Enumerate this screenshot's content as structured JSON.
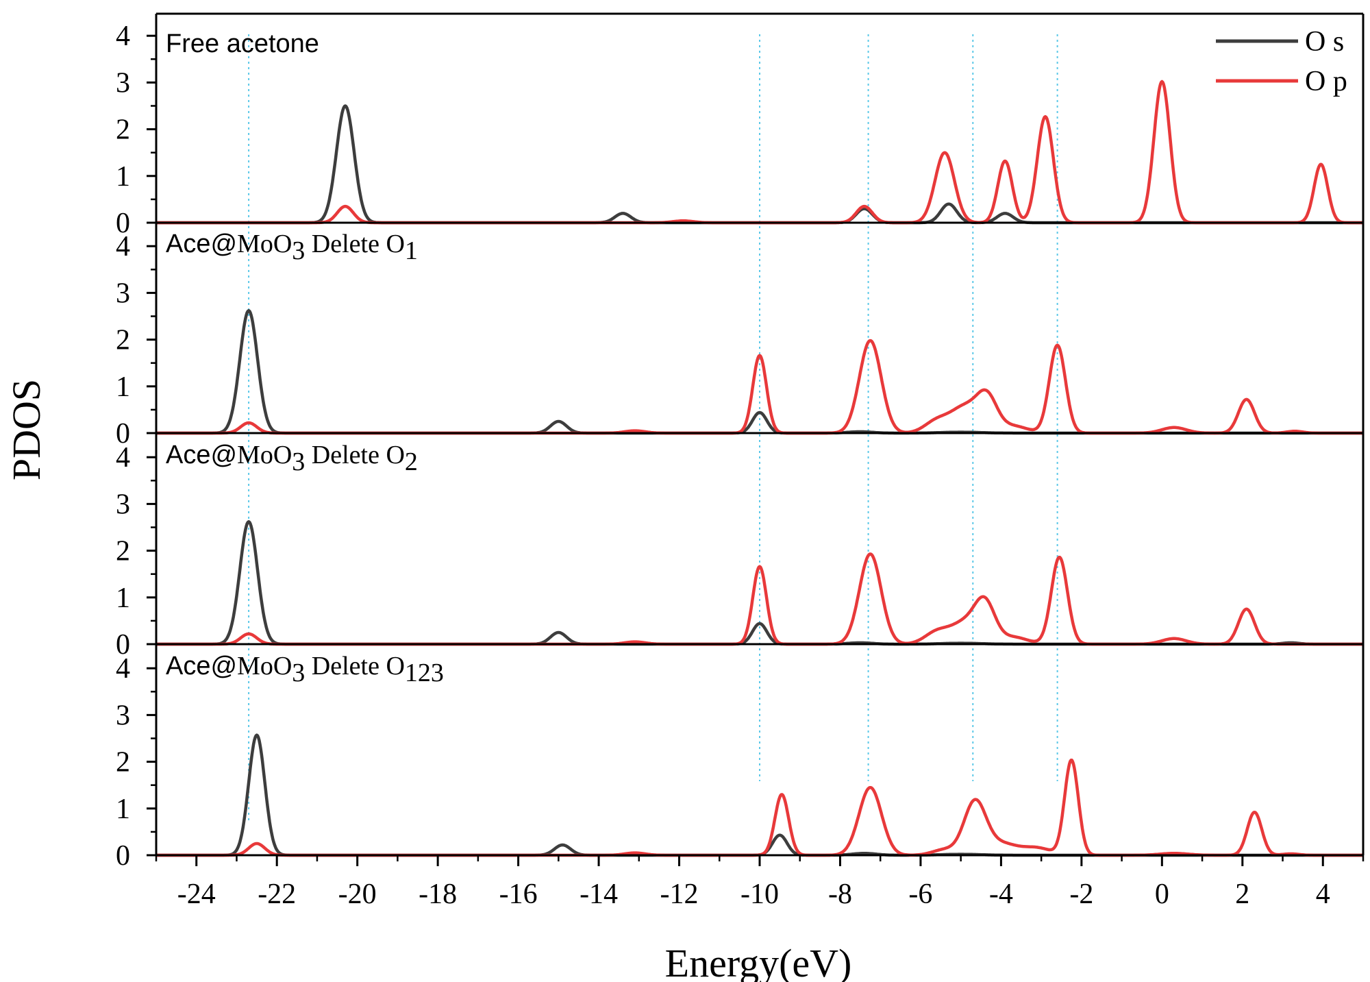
{
  "chart_data": {
    "type": "line",
    "xlabel": "Energy(eV)",
    "ylabel": "PDOS",
    "xlim": [
      -25,
      5
    ],
    "x_ticks": [
      "-24",
      "-22",
      "-20",
      "-18",
      "-16",
      "-14",
      "-12",
      "-10",
      "-8",
      "-6",
      "-4",
      "-2",
      "0",
      "2",
      "4"
    ],
    "y_ticks": [
      "0",
      "1",
      "2",
      "3",
      "4"
    ],
    "ylim": [
      0,
      4
    ],
    "reference_lines_x": [
      -22.7,
      -10.0,
      -7.3,
      -4.7,
      -2.6
    ],
    "colors": {
      "O s": "#3d3d3d",
      "O p": "#e8393a",
      "reference": "#5bc8e8"
    },
    "legend": {
      "entries": [
        {
          "label": "O s",
          "color": "#3d3d3d"
        },
        {
          "label": "O p",
          "color": "#e8393a"
        }
      ],
      "placement": "top-right"
    },
    "panels": [
      {
        "label_main": "Free acetone",
        "label_formula": "",
        "label_tail": "",
        "label_sub": "",
        "series": [
          {
            "name": "O s",
            "peaks": [
              [
                -20.3,
                2.5,
                0.22
              ],
              [
                -13.4,
                0.2,
                0.2
              ],
              [
                -7.4,
                0.3,
                0.2
              ],
              [
                -5.3,
                0.4,
                0.2
              ],
              [
                -3.9,
                0.2,
                0.2
              ]
            ]
          },
          {
            "name": "O p",
            "peaks": [
              [
                -20.3,
                0.35,
                0.2
              ],
              [
                -11.9,
                0.04,
                0.25
              ],
              [
                -7.4,
                0.35,
                0.2
              ],
              [
                -5.4,
                1.5,
                0.24
              ],
              [
                -3.9,
                1.32,
                0.18
              ],
              [
                -2.9,
                2.27,
                0.2
              ],
              [
                0.0,
                3.02,
                0.2
              ],
              [
                3.95,
                1.25,
                0.17
              ]
            ]
          }
        ]
      },
      {
        "label_main": "Ace@",
        "label_formula": "MoO",
        "label_tail": " Delete O",
        "label_sub": "1",
        "series": [
          {
            "name": "O s",
            "peaks": [
              [
                -22.7,
                2.62,
                0.22
              ],
              [
                -15.0,
                0.25,
                0.2
              ],
              [
                -10.0,
                0.44,
                0.18
              ],
              [
                -7.5,
                0.03,
                0.3
              ],
              [
                -5.0,
                0.02,
                0.5
              ]
            ]
          },
          {
            "name": "O p",
            "peaks": [
              [
                -22.7,
                0.22,
                0.2
              ],
              [
                -13.1,
                0.05,
                0.25
              ],
              [
                -10.0,
                1.66,
                0.17
              ],
              [
                -7.25,
                1.98,
                0.27
              ],
              [
                -5.6,
                0.25,
                0.3
              ],
              [
                -4.9,
                0.55,
                0.35
              ],
              [
                -4.35,
                0.72,
                0.25
              ],
              [
                -3.7,
                0.15,
                0.35
              ],
              [
                -2.6,
                1.88,
                0.2
              ],
              [
                0.3,
                0.12,
                0.3
              ],
              [
                2.1,
                0.72,
                0.2
              ],
              [
                3.3,
                0.04,
                0.2
              ]
            ]
          }
        ]
      },
      {
        "label_main": "Ace@",
        "label_formula": "MoO",
        "label_tail": " Delete O",
        "label_sub": "2",
        "series": [
          {
            "name": "O s",
            "peaks": [
              [
                -22.7,
                2.62,
                0.22
              ],
              [
                -15.0,
                0.25,
                0.2
              ],
              [
                -10.0,
                0.44,
                0.18
              ],
              [
                -7.5,
                0.03,
                0.3
              ],
              [
                -5.0,
                0.02,
                0.5
              ],
              [
                3.2,
                0.03,
                0.2
              ]
            ]
          },
          {
            "name": "O p",
            "peaks": [
              [
                -22.7,
                0.22,
                0.2
              ],
              [
                -13.1,
                0.05,
                0.25
              ],
              [
                -10.0,
                1.66,
                0.17
              ],
              [
                -7.25,
                1.93,
                0.27
              ],
              [
                -5.6,
                0.25,
                0.3
              ],
              [
                -4.9,
                0.45,
                0.35
              ],
              [
                -4.4,
                0.82,
                0.25
              ],
              [
                -3.7,
                0.15,
                0.35
              ],
              [
                -2.55,
                1.86,
                0.2
              ],
              [
                0.3,
                0.12,
                0.3
              ],
              [
                2.1,
                0.75,
                0.2
              ]
            ]
          }
        ]
      },
      {
        "label_main": "Ace@",
        "label_formula": "MoO",
        "label_tail": " Delete O",
        "label_sub": "123",
        "series": [
          {
            "name": "O s",
            "peaks": [
              [
                -22.5,
                2.57,
                0.2
              ],
              [
                -14.9,
                0.22,
                0.2
              ],
              [
                -9.5,
                0.43,
                0.18
              ],
              [
                -7.4,
                0.04,
                0.3
              ],
              [
                -5.0,
                0.02,
                0.5
              ]
            ]
          },
          {
            "name": "O p",
            "peaks": [
              [
                -22.5,
                0.25,
                0.2
              ],
              [
                -13.1,
                0.05,
                0.25
              ],
              [
                -9.45,
                1.3,
                0.17
              ],
              [
                -7.25,
                1.45,
                0.28
              ],
              [
                -5.4,
                0.12,
                0.3
              ],
              [
                -4.65,
                1.12,
                0.27
              ],
              [
                -4.0,
                0.25,
                0.4
              ],
              [
                -3.1,
                0.15,
                0.35
              ],
              [
                -2.25,
                2.03,
                0.17
              ],
              [
                0.3,
                0.04,
                0.35
              ],
              [
                2.3,
                0.92,
                0.18
              ],
              [
                3.2,
                0.03,
                0.2
              ]
            ]
          }
        ]
      }
    ]
  }
}
